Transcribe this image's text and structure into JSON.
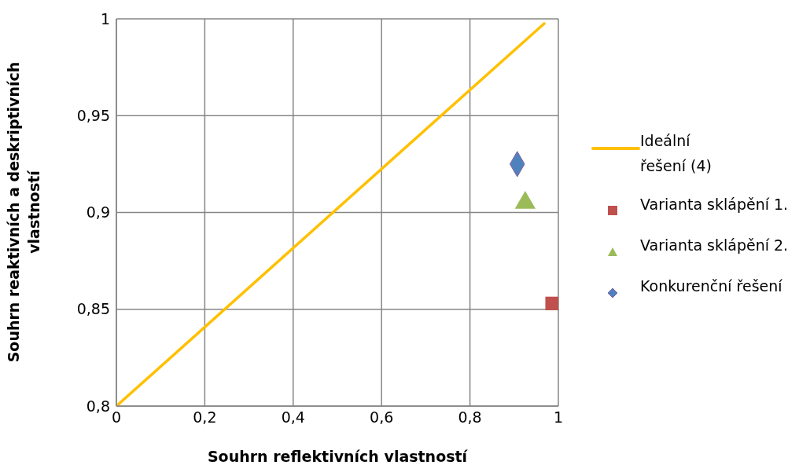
{
  "chart_data": {
    "type": "scatter",
    "xlabel": "Souhrn reflektivních vlastností",
    "ylabel": "Souhrn reaktivních a deskriptivních vlastností",
    "xlim": [
      0,
      1
    ],
    "xticks": [
      0,
      {
        "value": 0.2,
        "label": "0,2"
      },
      {
        "value": 0.4,
        "label": "0,4"
      },
      {
        "value": 0.6,
        "label": "0,6"
      },
      {
        "value": 0.8,
        "label": "0,8"
      },
      1
    ],
    "ylim": [
      0.8,
      1
    ],
    "yticks": [
      {
        "value": 0.8,
        "label": "0,8"
      },
      {
        "value": 0.85,
        "label": "0,85"
      },
      {
        "value": 0.9,
        "label": "0,9"
      },
      {
        "value": 0.95,
        "label": "0,95"
      },
      1
    ],
    "grid": true,
    "legend": "right",
    "series": [
      {
        "name": "Ideální řešení (4)",
        "type": "line",
        "marker": "none",
        "color": "#ffc000",
        "x": [
          0,
          0.97
        ],
        "values": [
          0.8,
          0.998
        ]
      },
      {
        "name": "Varianta sklápění 1.",
        "type": "scatter",
        "marker": "square",
        "color": "#c0504d",
        "x": [
          0.986
        ],
        "values": [
          0.853
        ]
      },
      {
        "name": "Varianta sklápění 2.",
        "type": "scatter",
        "marker": "triangle",
        "color": "#9bbb59",
        "x": [
          0.925
        ],
        "values": [
          0.905
        ]
      },
      {
        "name": "Konkurenční řešení",
        "type": "scatter",
        "marker": "diamond",
        "color": "#4f81bd",
        "x": [
          0.907
        ],
        "values": [
          0.925
        ]
      }
    ]
  }
}
